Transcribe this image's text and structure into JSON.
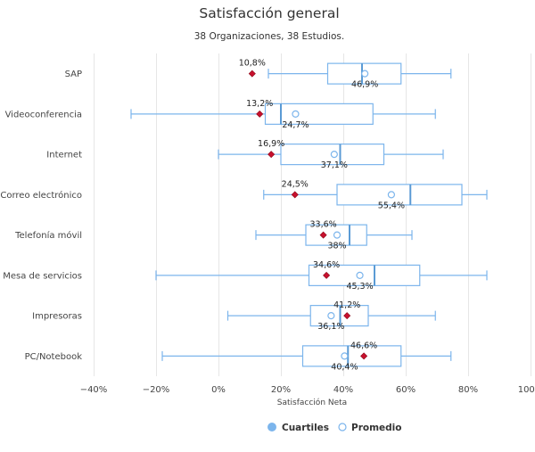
{
  "chart_data": {
    "type": "boxplot",
    "title": "Satisfacción general",
    "subtitle": "38 Organizaciones, 38 Estudios.",
    "xlabel": "Satisfacción Neta",
    "xlim": [
      -40,
      100
    ],
    "xticks": [
      -40,
      -20,
      0,
      20,
      40,
      60,
      80,
      100
    ],
    "tick_labels": [
      "−40%",
      "−20%",
      "0%",
      "20%",
      "40%",
      "60%",
      "80%",
      "100%"
    ],
    "grid": true,
    "legend_position": "bottom",
    "legend": [
      {
        "name": "Cuartiles",
        "symbol": "filled-circle",
        "color": "#7cb5ec"
      },
      {
        "name": "Promedio",
        "symbol": "hollow-circle",
        "color": "#7cb5ec"
      }
    ],
    "colors": {
      "box": "#7cb5ec",
      "median": "#5b9bd5",
      "marker": "#c8102e",
      "grid": "#e6e6e6"
    },
    "categories": [
      {
        "name": "SAP",
        "min": 16,
        "q1": 35,
        "median": 46,
        "q3": 58.5,
        "max": 74.5,
        "mean": 46.9,
        "mean_label": "46,9%",
        "value": 10.8,
        "value_label": "10,8%"
      },
      {
        "name": "Videoconferencia",
        "min": -28,
        "q1": 15,
        "median": 20,
        "q3": 49.5,
        "max": 69.5,
        "mean": 24.7,
        "mean_label": "24,7%",
        "value": 13.2,
        "value_label": "13,2%"
      },
      {
        "name": "Internet",
        "min": 0,
        "q1": 20,
        "median": 39,
        "q3": 53,
        "max": 72,
        "mean": 37.1,
        "mean_label": "37,1%",
        "value": 16.9,
        "value_label": "16,9%"
      },
      {
        "name": "Correo electrónico",
        "min": 14.5,
        "q1": 38,
        "median": 61.5,
        "q3": 78,
        "max": 86,
        "mean": 55.4,
        "mean_label": "55,4%",
        "value": 24.5,
        "value_label": "24,5%"
      },
      {
        "name": "Telefonía móvil",
        "min": 12,
        "q1": 28,
        "median": 42,
        "q3": 47.5,
        "max": 62,
        "mean": 38,
        "mean_label": "38%",
        "value": 33.6,
        "value_label": "33,6%"
      },
      {
        "name": "Mesa de servicios",
        "min": -20,
        "q1": 29,
        "median": 50,
        "q3": 64.5,
        "max": 86,
        "mean": 45.3,
        "mean_label": "45,3%",
        "value": 34.6,
        "value_label": "34,6%"
      },
      {
        "name": "Impresoras",
        "min": 3,
        "q1": 29.5,
        "median": 39,
        "q3": 48,
        "max": 69.5,
        "mean": 36.1,
        "mean_label": "36,1%",
        "value": 41.2,
        "value_label": "41,2%"
      },
      {
        "name": "PC/Notebook",
        "min": -18,
        "q1": 27,
        "median": 41.5,
        "q3": 58.5,
        "max": 74.5,
        "mean": 40.4,
        "mean_label": "40,4%",
        "value": 46.6,
        "value_label": "46,6%"
      }
    ]
  }
}
